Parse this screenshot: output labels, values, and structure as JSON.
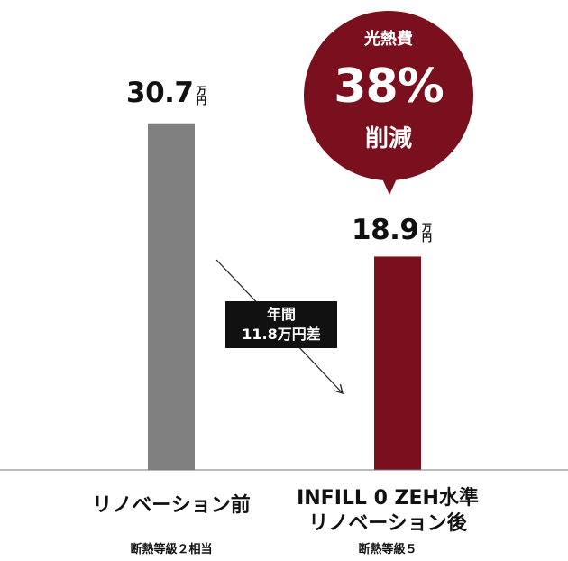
{
  "chart_data": {
    "type": "bar",
    "categories": [
      "リノベーション前",
      "INFILL 0 ZEH水準\nリノベーション後"
    ],
    "subcategories": [
      "断熱等級２相当",
      "断熱等級５"
    ],
    "values": [
      30.7,
      18.9
    ],
    "value_labels": [
      "30.7",
      "18.9"
    ],
    "unit": "万円",
    "ylim": [
      0,
      31
    ],
    "grid": false,
    "legend": "none",
    "annotations": {
      "bubble": {
        "line1": "光熱費",
        "line2": "38%",
        "line3": "削減"
      },
      "difference": {
        "line1": "年間",
        "line2": "11.8万円差"
      }
    }
  },
  "colors": {
    "before_bar": "#808080",
    "after_bar": "#7a0f1e",
    "bubble": "#7a0f1e",
    "diff_box": "#111111",
    "baseline": "#777777"
  }
}
